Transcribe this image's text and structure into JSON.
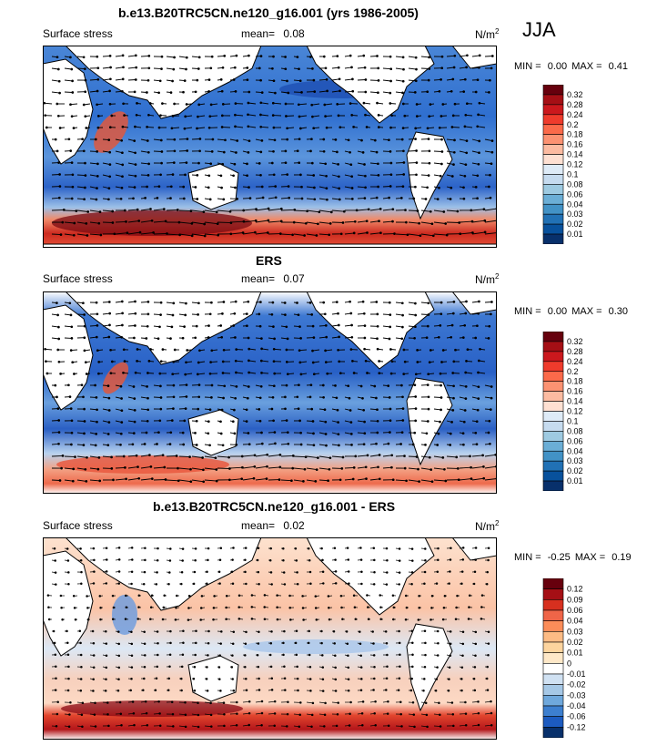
{
  "season": "JJA",
  "panels": [
    {
      "title": "b.e13.B20TRC5CN.ne120_g16.001 (yrs 1986-2005)",
      "left_label": "Surface stress",
      "mean_label": "mean=",
      "mean_value": "0.08",
      "units_base": "N/m",
      "units_exp": "2",
      "min_label": "MIN =",
      "min_value": "0.00",
      "max_label": "MAX =",
      "max_value": "0.41",
      "colorbar_labels": [
        "0.32",
        "0.28",
        "0.24",
        "0.2",
        "0.18",
        "0.16",
        "0.14",
        "0.12",
        "0.1",
        "0.08",
        "0.06",
        "0.04",
        "0.03",
        "0.02",
        "0.01"
      ]
    },
    {
      "title": "ERS",
      "left_label": "Surface stress",
      "mean_label": "mean=",
      "mean_value": "0.07",
      "units_base": "N/m",
      "units_exp": "2",
      "min_label": "MIN =",
      "min_value": "0.00",
      "max_label": "MAX =",
      "max_value": "0.30",
      "colorbar_labels": [
        "0.32",
        "0.28",
        "0.24",
        "0.2",
        "0.18",
        "0.16",
        "0.14",
        "0.12",
        "0.1",
        "0.08",
        "0.06",
        "0.04",
        "0.03",
        "0.02",
        "0.01"
      ]
    },
    {
      "title": "b.e13.B20TRC5CN.ne120_g16.001 - ERS",
      "left_label": "Surface stress",
      "mean_label": "mean=",
      "mean_value": "0.02",
      "units_base": "N/m",
      "units_exp": "2",
      "min_label": "MIN =",
      "min_value": "-0.25",
      "max_label": "MAX =",
      "max_value": "0.19",
      "colorbar_labels": [
        "0.12",
        "0.09",
        "0.06",
        "0.04",
        "0.03",
        "0.02",
        "0.01",
        "0",
        "-0.01",
        "-0.02",
        "-0.03",
        "-0.04",
        "-0.06",
        "-0.12"
      ]
    }
  ],
  "colors": {
    "seq": [
      "#67000d",
      "#a50f15",
      "#cb181d",
      "#ef3b2c",
      "#fb6a4a",
      "#fc9272",
      "#fcbba1",
      "#fee0d2",
      "#deebf7",
      "#c6dbef",
      "#9ecae1",
      "#6baed6",
      "#4292c6",
      "#2171b5",
      "#08519c",
      "#08306b"
    ],
    "diff": [
      "#67000d",
      "#a50f15",
      "#d7301f",
      "#ef6548",
      "#fc8d59",
      "#fdbb84",
      "#fdd49e",
      "#fee8c8",
      "#ffffff",
      "#d0e1f2",
      "#a6c8e6",
      "#6fa8dc",
      "#3d7fcf",
      "#1c5bc0",
      "#08306b"
    ]
  }
}
